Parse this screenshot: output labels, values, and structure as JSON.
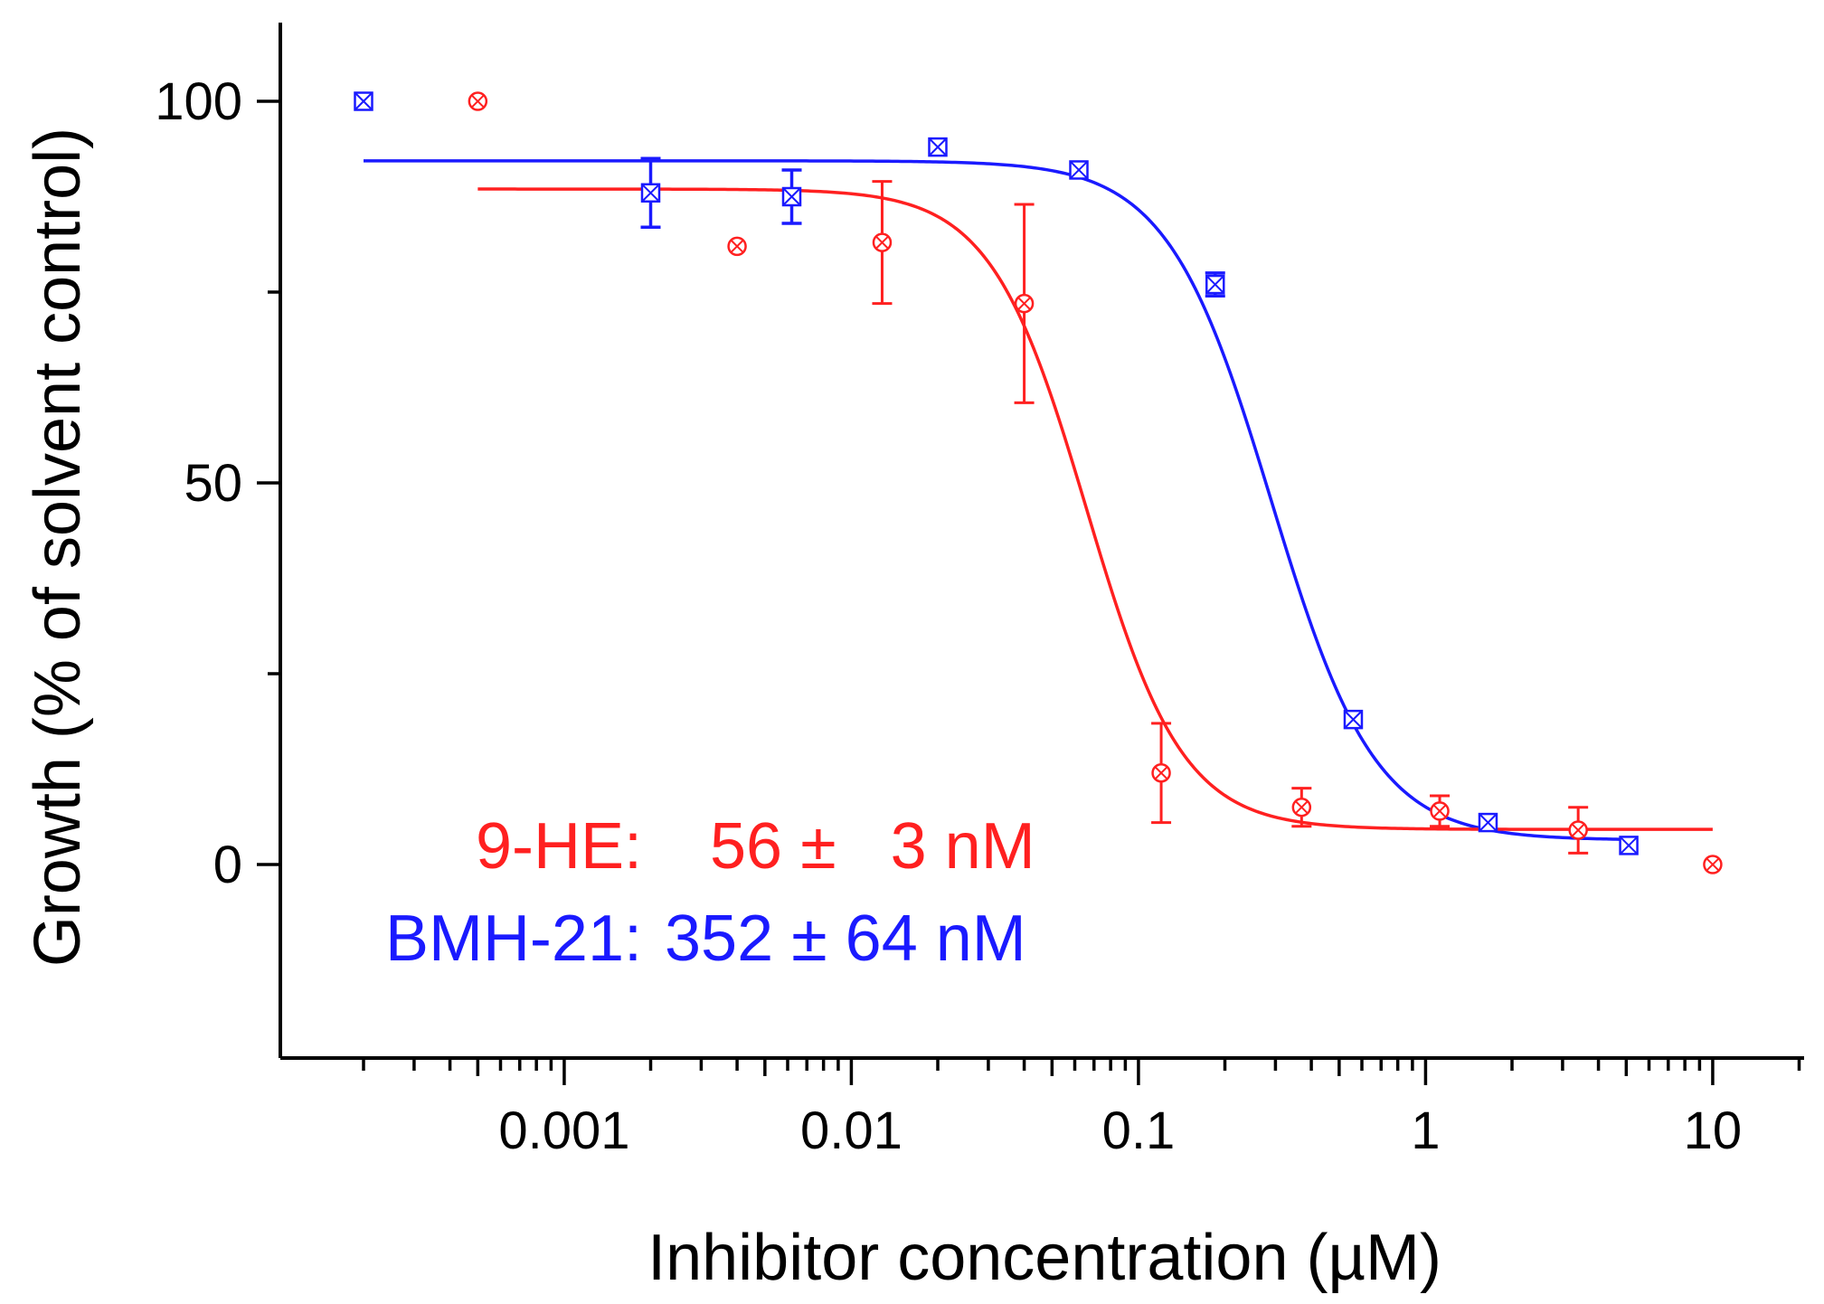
{
  "chart_data": {
    "type": "scatter",
    "title": "",
    "xlabel": "Inhibitor concentration (µM)",
    "ylabel": "Growth (% of solvent control)",
    "xscale": "log",
    "xlim": [
      0.0001,
      20
    ],
    "ylim": [
      -25,
      110
    ],
    "yticks": [
      {
        "value": 0,
        "label": "0"
      },
      {
        "value": 50,
        "label": "50"
      },
      {
        "value": 100,
        "label": "100"
      }
    ],
    "yminor": [
      25,
      75
    ],
    "xticks": [
      {
        "value": 0.001,
        "label": "0.001"
      },
      {
        "value": 0.01,
        "label": "0.01"
      },
      {
        "value": 0.1,
        "label": "0.1"
      },
      {
        "value": 1,
        "label": "1"
      },
      {
        "value": 10,
        "label": "10"
      }
    ],
    "series": [
      {
        "name": "BMH-21",
        "color": "#1a1aff",
        "marker": "square-x",
        "points": [
          {
            "x": 0.0002,
            "y": 100,
            "err": 0
          },
          {
            "x": 0.002,
            "y": 88,
            "err": 4.5
          },
          {
            "x": 0.0062,
            "y": 87.5,
            "err": 3.5
          },
          {
            "x": 0.02,
            "y": 94,
            "err": 0
          },
          {
            "x": 0.062,
            "y": 91,
            "err": 0
          },
          {
            "x": 0.185,
            "y": 76,
            "err": 1.5
          },
          {
            "x": 0.56,
            "y": 19,
            "err": 0
          },
          {
            "x": 1.65,
            "y": 5.5,
            "err": 0
          },
          {
            "x": 5.1,
            "y": 2.5,
            "err": 0
          }
        ],
        "fit": {
          "top": 92.2,
          "bottom": 3.2,
          "ic50": 0.29,
          "hill": 2.4,
          "xrange": [
            0.0002,
            5.1
          ]
        },
        "annotation": {
          "label": "BMH-21:",
          "value": "352 ± 64 nM"
        }
      },
      {
        "name": "9-HE",
        "color": "#ff2020",
        "marker": "circle-x",
        "points": [
          {
            "x": 0.0005,
            "y": 100,
            "err": 0
          },
          {
            "x": 0.004,
            "y": 81,
            "err": 0
          },
          {
            "x": 0.0128,
            "y": 81.5,
            "err": 8
          },
          {
            "x": 0.04,
            "y": 73.5,
            "err": 13
          },
          {
            "x": 0.12,
            "y": 12,
            "err": 6.5
          },
          {
            "x": 0.37,
            "y": 7.5,
            "err": 2.5
          },
          {
            "x": 1.12,
            "y": 7,
            "err": 2
          },
          {
            "x": 3.4,
            "y": 4.5,
            "err": 3
          },
          {
            "x": 10,
            "y": 0,
            "err": 0
          }
        ],
        "fit": {
          "top": 88.5,
          "bottom": 4.6,
          "ic50": 0.066,
          "hill": 2.6,
          "xrange": [
            0.0005,
            10
          ]
        },
        "annotation": {
          "label": "9-HE:",
          "value": "56 ±   3 nM"
        }
      }
    ]
  }
}
